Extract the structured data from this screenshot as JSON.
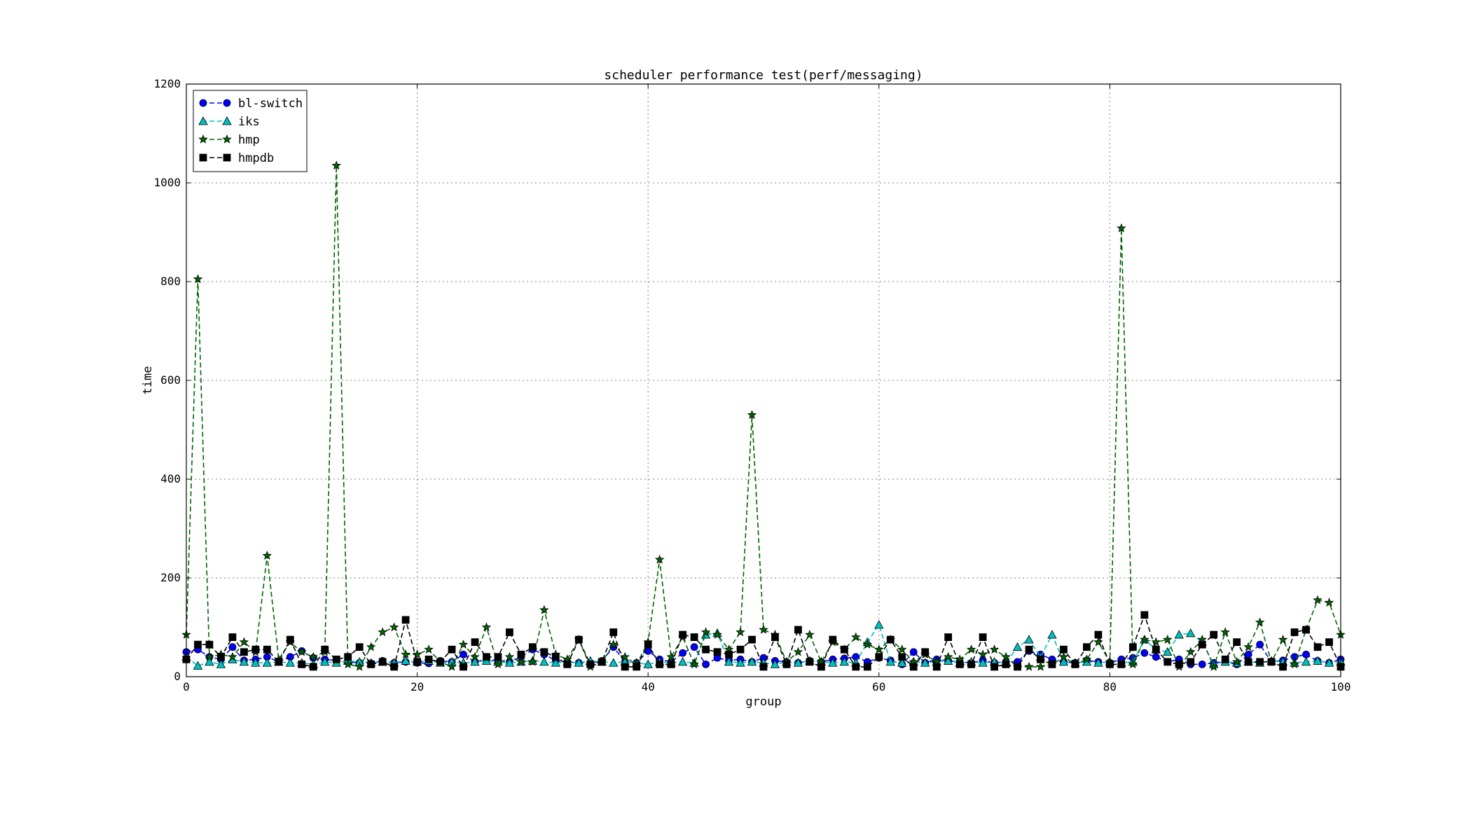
{
  "chart_data": {
    "type": "line",
    "title": "scheduler performance test(perf/messaging)",
    "xlabel": "group",
    "ylabel": "time",
    "xlim": [
      0,
      100
    ],
    "ylim": [
      0,
      1200
    ],
    "xticks": [
      0,
      20,
      40,
      60,
      80,
      100
    ],
    "yticks": [
      0,
      200,
      400,
      600,
      800,
      1000,
      1200
    ],
    "grid": true,
    "legend_position": "upper-left",
    "x": [
      0,
      1,
      2,
      3,
      4,
      5,
      6,
      7,
      8,
      9,
      10,
      11,
      12,
      13,
      14,
      15,
      16,
      17,
      18,
      19,
      20,
      21,
      22,
      23,
      24,
      25,
      26,
      27,
      28,
      29,
      30,
      31,
      32,
      33,
      34,
      35,
      36,
      37,
      38,
      39,
      40,
      41,
      42,
      43,
      44,
      45,
      46,
      47,
      48,
      49,
      50,
      51,
      52,
      53,
      54,
      55,
      56,
      57,
      58,
      59,
      60,
      61,
      62,
      63,
      64,
      65,
      66,
      67,
      68,
      69,
      70,
      71,
      72,
      73,
      74,
      75,
      76,
      77,
      78,
      79,
      80,
      81,
      82,
      83,
      84,
      85,
      86,
      87,
      88,
      89,
      90,
      91,
      92,
      93,
      94,
      95,
      96,
      97,
      98,
      99,
      100
    ],
    "series": [
      {
        "name": "bl-switch",
        "color": "#0000ff",
        "marker": "circle",
        "values": [
          50,
          55,
          40,
          35,
          60,
          33,
          35,
          40,
          30,
          40,
          52,
          38,
          35,
          33,
          30,
          28,
          27,
          32,
          28,
          30,
          28,
          27,
          32,
          30,
          45,
          30,
          35,
          32,
          30,
          40,
          55,
          45,
          33,
          30,
          28,
          28,
          32,
          60,
          30,
          28,
          52,
          35,
          30,
          48,
          60,
          25,
          38,
          33,
          35,
          30,
          38,
          32,
          30,
          28,
          32,
          30,
          35,
          37,
          40,
          30,
          38,
          33,
          25,
          50,
          28,
          35,
          32,
          30,
          28,
          33,
          28,
          30,
          30,
          52,
          45,
          35,
          30,
          28,
          33,
          30,
          28,
          35,
          38,
          48,
          40,
          30,
          35,
          25,
          25,
          28,
          30,
          25,
          45,
          65,
          30,
          33,
          40,
          45,
          32,
          28,
          35
        ]
      },
      {
        "name": "iks",
        "color": "#00bfbf",
        "marker": "triangle",
        "values": [
          40,
          22,
          30,
          25,
          35,
          30,
          28,
          28,
          30,
          28,
          28,
          25,
          30,
          28,
          32,
          30,
          28,
          30,
          28,
          32,
          30,
          32,
          28,
          30,
          28,
          30,
          32,
          30,
          28,
          30,
          32,
          30,
          28,
          30,
          28,
          32,
          30,
          28,
          30,
          28,
          25,
          30,
          28,
          30,
          28,
          85,
          88,
          30,
          28,
          30,
          28,
          25,
          30,
          28,
          32,
          30,
          28,
          30,
          28,
          70,
          105,
          30,
          28,
          30,
          28,
          30,
          32,
          28,
          30,
          28,
          30,
          28,
          60,
          75,
          40,
          85,
          30,
          28,
          30,
          28,
          30,
          28,
          30,
          75,
          55,
          50,
          85,
          88,
          70,
          25,
          30,
          28,
          30,
          28,
          32,
          30,
          28,
          30,
          32,
          28,
          30
        ]
      },
      {
        "name": "hmp",
        "color": "#006400",
        "marker": "star",
        "values": [
          85,
          805,
          40,
          45,
          40,
          70,
          50,
          245,
          35,
          70,
          50,
          40,
          50,
          1035,
          25,
          20,
          60,
          90,
          100,
          45,
          45,
          55,
          30,
          20,
          65,
          40,
          100,
          25,
          40,
          30,
          30,
          135,
          45,
          35,
          75,
          20,
          30,
          65,
          40,
          25,
          70,
          237,
          40,
          80,
          25,
          90,
          85,
          55,
          90,
          530,
          95,
          85,
          30,
          50,
          85,
          30,
          70,
          55,
          80,
          65,
          55,
          75,
          55,
          30,
          45,
          30,
          40,
          35,
          55,
          45,
          55,
          40,
          20,
          20,
          20,
          25,
          40,
          25,
          35,
          70,
          30,
          908,
          25,
          75,
          70,
          75,
          20,
          50,
          75,
          20,
          90,
          30,
          60,
          110,
          30,
          75,
          25,
          95,
          155,
          150,
          85
        ]
      },
      {
        "name": "hmpdb",
        "color": "#000000",
        "marker": "square",
        "values": [
          35,
          65,
          65,
          40,
          80,
          50,
          55,
          55,
          30,
          75,
          25,
          20,
          55,
          35,
          40,
          60,
          25,
          30,
          20,
          115,
          30,
          35,
          30,
          55,
          20,
          70,
          40,
          40,
          90,
          45,
          60,
          50,
          40,
          25,
          75,
          25,
          30,
          90,
          20,
          20,
          65,
          25,
          25,
          85,
          80,
          55,
          50,
          45,
          55,
          75,
          20,
          80,
          25,
          95,
          30,
          20,
          75,
          55,
          20,
          20,
          40,
          75,
          40,
          20,
          50,
          20,
          80,
          25,
          25,
          80,
          20,
          25,
          20,
          55,
          35,
          25,
          55,
          25,
          60,
          85,
          25,
          25,
          60,
          125,
          55,
          30,
          25,
          30,
          65,
          85,
          35,
          70,
          30,
          30,
          30,
          20,
          90,
          95,
          60,
          70,
          20
        ]
      }
    ]
  }
}
